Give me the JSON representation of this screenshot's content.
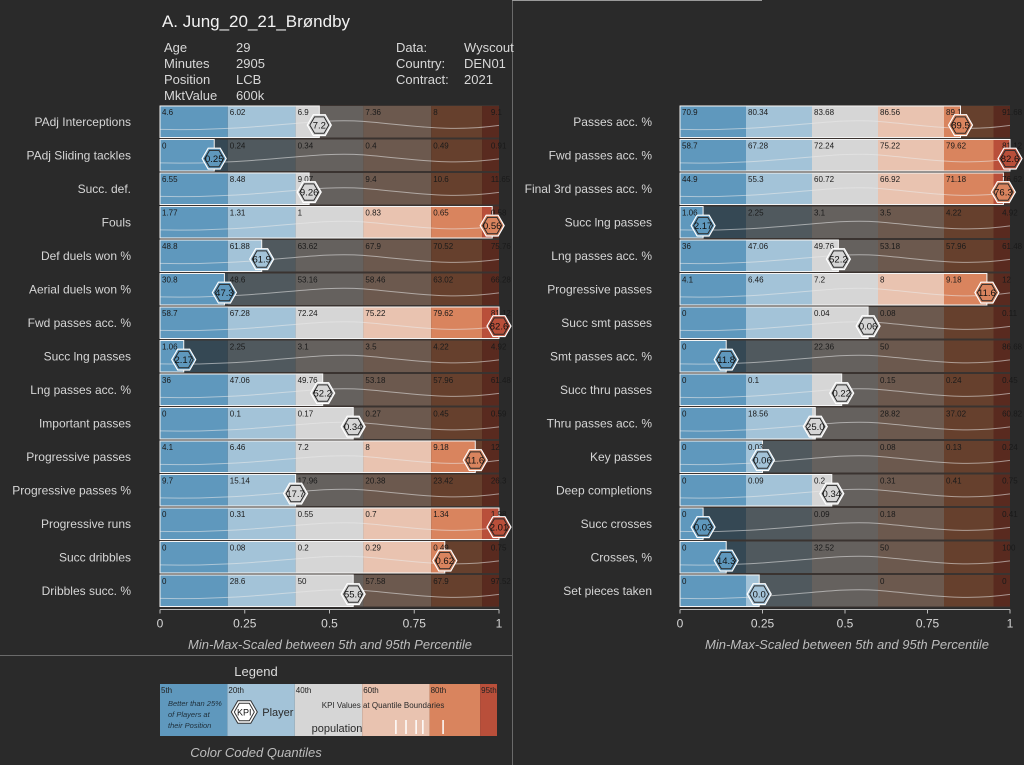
{
  "header": {
    "title": "A. Jung_20_21_Brøndby",
    "info_left": [
      {
        "key": "Age",
        "value": "29"
      },
      {
        "key": "Minutes",
        "value": "2905"
      },
      {
        "key": "Position",
        "value": "LCB"
      },
      {
        "key": "MktValue",
        "value": "600k"
      }
    ],
    "info_right": [
      {
        "key": "Data:",
        "value": "Wyscout"
      },
      {
        "key": "Country:",
        "value": "DEN01"
      },
      {
        "key": "Contract:",
        "value": "2021"
      }
    ]
  },
  "colors": {
    "q1": "#5f98bd",
    "q2": "#a3c3d8",
    "q3": "#d6d6d6",
    "q4": "#e9c3b0",
    "q5": "#d9845e",
    "q6": "#b94f3a",
    "shade": "rgba(25,18,14,0.60)",
    "background": "#2a2a2a"
  },
  "x_ticks": [
    "0",
    "0.25",
    "0.5",
    "0.75",
    "1"
  ],
  "x_caption": "Min-Max-Scaled between 5th and 95th Percentile",
  "legend": {
    "title": "Legend",
    "caption": "Color Coded Quantiles",
    "pct_labels": [
      "5th",
      "20th",
      "40th",
      "60th",
      "80th",
      "95th"
    ],
    "better_note": [
      "Better than 25%",
      "of Players at",
      "their Position"
    ],
    "kpi_label": "KPI",
    "player_label": "Player",
    "boundary_note": "KPI Values at Quantile Boundaries",
    "population_label": "population"
  },
  "chart_data": [
    {
      "type": "bar",
      "title": "",
      "xlabel": "Min-Max-Scaled between 5th and 95th Percentile",
      "xlim": [
        0,
        1
      ],
      "rows": [
        {
          "label": "PAdj Interceptions",
          "scaled": 0.47,
          "value": "7.2",
          "boundaries": [
            "4.6",
            "6.02",
            "6.9",
            "7.36",
            "8",
            "9.1"
          ]
        },
        {
          "label": "PAdj Sliding tackles",
          "scaled": 0.16,
          "value": "0.25",
          "boundaries": [
            "0",
            "0.24",
            "0.34",
            "0.4",
            "0.49",
            "0.91"
          ]
        },
        {
          "label": "Succ. def.",
          "scaled": 0.44,
          "value": "9.26",
          "boundaries": [
            "6.55",
            "8.48",
            "9.07",
            "9.4",
            "10.6",
            "11.65"
          ]
        },
        {
          "label": "Fouls",
          "scaled": 0.98,
          "value": "0.56",
          "boundaries": [
            "1.77",
            "1.31",
            "1",
            "0.83",
            "0.65",
            "0.58"
          ]
        },
        {
          "label": "Def duels won %",
          "scaled": 0.3,
          "value": "61.9",
          "boundaries": [
            "48.8",
            "61.88",
            "63.62",
            "67.9",
            "70.52",
            "75.76"
          ]
        },
        {
          "label": "Aerial duels won %",
          "scaled": 0.19,
          "value": "47.3",
          "boundaries": [
            "30.8",
            "48.6",
            "53.16",
            "58.46",
            "63.02",
            "66.28"
          ]
        },
        {
          "label": "Fwd passes acc. %",
          "scaled": 1.0,
          "value": "82.6",
          "boundaries": [
            "58.7",
            "67.28",
            "72.24",
            "75.22",
            "79.62",
            "81.12"
          ]
        },
        {
          "label": "Succ lng passes",
          "scaled": 0.07,
          "value": "2.17",
          "boundaries": [
            "1.06",
            "2.25",
            "3.1",
            "3.5",
            "4.22",
            "4.92"
          ]
        },
        {
          "label": "Lng passes acc. %",
          "scaled": 0.48,
          "value": "52.2",
          "boundaries": [
            "36",
            "47.06",
            "49.76",
            "53.18",
            "57.96",
            "61.48"
          ]
        },
        {
          "label": "Important passes",
          "scaled": 0.57,
          "value": "0.34",
          "boundaries": [
            "0",
            "0.1",
            "0.17",
            "0.27",
            "0.45",
            "0.59"
          ]
        },
        {
          "label": "Progressive passes",
          "scaled": 0.93,
          "value": "11.6",
          "boundaries": [
            "4.1",
            "6.46",
            "7.2",
            "8",
            "9.18",
            "12"
          ]
        },
        {
          "label": "Progressive passes %",
          "scaled": 0.4,
          "value": "17.7",
          "boundaries": [
            "9.7",
            "15.14",
            "17.96",
            "20.38",
            "23.42",
            "26.3"
          ]
        },
        {
          "label": "Progressive runs",
          "scaled": 1.0,
          "value": "2.01",
          "boundaries": [
            "0",
            "0.31",
            "0.55",
            "0.7",
            "1.34",
            "1.98"
          ]
        },
        {
          "label": "Succ dribbles",
          "scaled": 0.84,
          "value": "0.62",
          "boundaries": [
            "0",
            "0.08",
            "0.2",
            "0.29",
            "0.49",
            "0.75"
          ]
        },
        {
          "label": "Dribbles succ. %",
          "scaled": 0.57,
          "value": "55.6",
          "boundaries": [
            "0",
            "28.6",
            "50",
            "57.58",
            "67.9",
            "97.52"
          ]
        }
      ]
    },
    {
      "type": "bar",
      "title": "",
      "xlabel": "Min-Max-Scaled between 5th and 95th Percentile",
      "xlim": [
        0,
        1
      ],
      "rows": [
        {
          "label": "Passes acc. %",
          "scaled": 0.85,
          "value": "89.5",
          "boundaries": [
            "70.9",
            "80.34",
            "83.68",
            "86.56",
            "89.1",
            "91.68"
          ]
        },
        {
          "label": "Fwd passes acc. %",
          "scaled": 1.0,
          "value": "82.6",
          "boundaries": [
            "58.7",
            "67.28",
            "72.24",
            "75.22",
            "79.62",
            "81.12"
          ]
        },
        {
          "label": "Final 3rd passes acc. %",
          "scaled": 0.98,
          "value": "76.3",
          "boundaries": [
            "44.9",
            "55.3",
            "60.72",
            "66.92",
            "71.18",
            "76.62"
          ]
        },
        {
          "label": "Succ lng passes",
          "scaled": 0.07,
          "value": "2.17",
          "boundaries": [
            "1.06",
            "2.25",
            "3.1",
            "3.5",
            "4.22",
            "4.92"
          ]
        },
        {
          "label": "Lng passes acc. %",
          "scaled": 0.48,
          "value": "52.2",
          "boundaries": [
            "36",
            "47.06",
            "49.76",
            "53.18",
            "57.96",
            "61.48"
          ]
        },
        {
          "label": "Progressive passes",
          "scaled": 0.93,
          "value": "11.6",
          "boundaries": [
            "4.1",
            "6.46",
            "7.2",
            "8",
            "9.18",
            "12"
          ]
        },
        {
          "label": "Succ smt passes",
          "scaled": 0.57,
          "value": "0.06",
          "boundaries": [
            "0",
            "0.04",
            "0.08",
            "0.11"
          ]
        },
        {
          "label": "Smt passes acc. %",
          "scaled": 0.14,
          "value": "11.8",
          "boundaries": [
            "0",
            "22.36",
            "50",
            "86.68"
          ]
        },
        {
          "label": "Succ thru passes",
          "scaled": 0.49,
          "value": "0.22",
          "boundaries": [
            "0",
            "0.1",
            "0.15",
            "0.24",
            "0.45"
          ]
        },
        {
          "label": "Thru passes acc. %",
          "scaled": 0.41,
          "value": "25.0",
          "boundaries": [
            "0",
            "18.56",
            "28.82",
            "37.02",
            "60.82"
          ]
        },
        {
          "label": "Key passes",
          "scaled": 0.25,
          "value": "0.06",
          "boundaries": [
            "0",
            "0.03",
            "0.08",
            "0.13",
            "0.24"
          ]
        },
        {
          "label": "Deep completions",
          "scaled": 0.46,
          "value": "0.34",
          "boundaries": [
            "0",
            "0.09",
            "0.2",
            "0.31",
            "0.41",
            "0.75"
          ]
        },
        {
          "label": "Succ crosses",
          "scaled": 0.07,
          "value": "0.03",
          "boundaries": [
            "0",
            "0.09",
            "0.18",
            "0.41"
          ]
        },
        {
          "label": "Crosses, %",
          "scaled": 0.14,
          "value": "14.3",
          "boundaries": [
            "0",
            "32.52",
            "50",
            "100"
          ]
        },
        {
          "label": "Set pieces taken",
          "scaled": 0.24,
          "value": "0.0",
          "boundaries": [
            "0",
            "0",
            "0"
          ]
        }
      ]
    }
  ]
}
